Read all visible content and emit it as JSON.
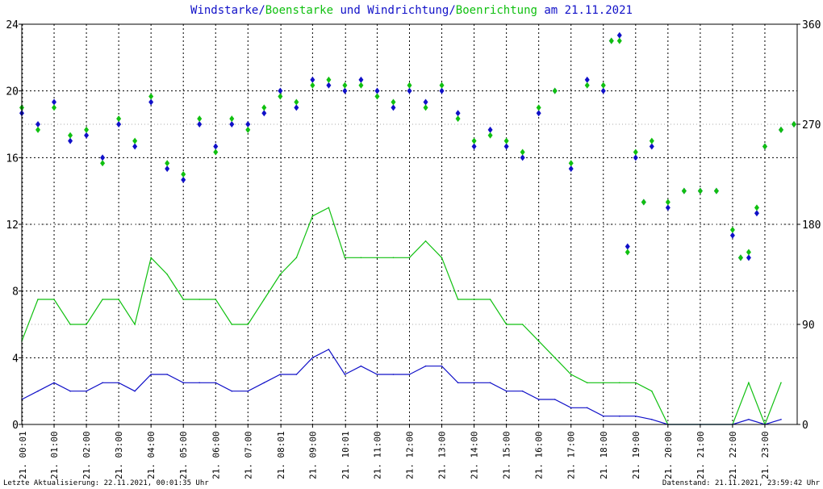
{
  "title": {
    "part1": "Windstarke",
    "sep1": "/",
    "part2": "Boenstarke",
    "mid": " und ",
    "part3": "Windrichtung",
    "sep2": "/",
    "part4": "Boenrichtung",
    "tail": " am 21.11.2021"
  },
  "footer": {
    "left": "Letzte Aktualisierung: 22.11.2021, 00:01:35 Uhr",
    "right": "Datenstand: 21.11.2021, 23:59:42 Uhr"
  },
  "colors": {
    "wind": "#1010c8",
    "gust": "#10c010",
    "grid": "#000000",
    "background": "#ffffff"
  },
  "chart_data": {
    "type": "line",
    "y_left": {
      "ylim": [
        0,
        24
      ],
      "ticks": [
        "0",
        "4",
        "8",
        "12",
        "16",
        "20",
        "24"
      ]
    },
    "y_right": {
      "ylim": [
        0,
        360
      ],
      "ticks": [
        "0",
        "90",
        "180",
        "270",
        "360"
      ]
    },
    "x_ticks": [
      "21. 00:01",
      "21. 01:00",
      "21. 02:00",
      "21. 03:00",
      "21. 04:00",
      "21. 05:00",
      "21. 06:00",
      "21. 07:00",
      "21. 08:01",
      "21. 09:00",
      "21. 10:01",
      "21. 11:00",
      "21. 12:00",
      "21. 13:00",
      "21. 14:00",
      "21. 15:00",
      "21. 16:00",
      "21. 17:00",
      "21. 18:00",
      "21. 19:00",
      "21. 20:00",
      "21. 21:00",
      "21. 22:00",
      "21. 23:00"
    ],
    "x_tick_hours": [
      0.02,
      1,
      2,
      3,
      4,
      5,
      6,
      7,
      8.02,
      9,
      10.02,
      11,
      12,
      13,
      14,
      15,
      16,
      17,
      18,
      19,
      20,
      21,
      22,
      23
    ],
    "xlim_hours": [
      0,
      24
    ],
    "series": [
      {
        "name": "Windstarke",
        "axis": "left",
        "kind": "line",
        "color_key": "wind",
        "x_hours": [
          0,
          0.5,
          1,
          1.5,
          2,
          2.5,
          3,
          3.5,
          4,
          4.5,
          5,
          5.5,
          6,
          6.5,
          7,
          7.5,
          8,
          8.5,
          9,
          9.5,
          10,
          10.5,
          11,
          11.5,
          12,
          12.5,
          13,
          13.5,
          14,
          14.5,
          15,
          15.5,
          16,
          16.5,
          17,
          17.5,
          18,
          18.5,
          19,
          19.5,
          20,
          21,
          22,
          22.5,
          23,
          23.5
        ],
        "values": [
          1.5,
          2.0,
          2.5,
          2.0,
          2.0,
          2.5,
          2.5,
          2.0,
          3.0,
          3.0,
          2.5,
          2.5,
          2.5,
          2.0,
          2.0,
          2.5,
          3.0,
          3.0,
          4.0,
          4.5,
          3.0,
          3.5,
          3.0,
          3.0,
          3.0,
          3.5,
          3.5,
          2.5,
          2.5,
          2.5,
          2.0,
          2.0,
          1.5,
          1.5,
          1.0,
          1.0,
          0.5,
          0.5,
          0.5,
          0.3,
          0,
          0,
          0,
          0.3,
          0,
          0.3
        ]
      },
      {
        "name": "Boenstarke",
        "axis": "left",
        "kind": "line",
        "color_key": "gust",
        "x_hours": [
          0,
          0.5,
          1,
          1.5,
          2,
          2.5,
          3,
          3.5,
          4,
          4.5,
          5,
          5.5,
          6,
          6.5,
          7,
          7.5,
          8,
          8.5,
          9,
          9.5,
          10,
          10.5,
          11,
          11.5,
          12,
          12.5,
          13,
          13.5,
          14,
          14.5,
          15,
          15.5,
          16,
          16.5,
          17,
          17.5,
          18,
          18.5,
          19,
          19.5,
          20,
          21,
          22,
          22.5,
          23,
          23.5
        ],
        "values": [
          5.0,
          7.5,
          7.5,
          6.0,
          6.0,
          7.5,
          7.5,
          6.0,
          10.0,
          9.0,
          7.5,
          7.5,
          7.5,
          6.0,
          6.0,
          7.5,
          9.0,
          10.0,
          12.5,
          13.0,
          10.0,
          10.0,
          10.0,
          10.0,
          10.0,
          11.0,
          10.0,
          7.5,
          7.5,
          7.5,
          6.0,
          6.0,
          5.0,
          4.0,
          3.0,
          2.5,
          2.5,
          2.5,
          2.5,
          2.0,
          0,
          0,
          0,
          2.5,
          0,
          2.5
        ]
      },
      {
        "name": "Windrichtung",
        "axis": "right",
        "kind": "points",
        "color_key": "wind",
        "x_hours": [
          0,
          0.5,
          1,
          1.5,
          2,
          2.5,
          3,
          3.5,
          4,
          4.5,
          5,
          5.5,
          6,
          6.5,
          7,
          7.5,
          8,
          8.5,
          9,
          9.5,
          10,
          10.5,
          11,
          11.5,
          12,
          12.5,
          13,
          13.5,
          14,
          14.5,
          15,
          15.5,
          16,
          16.5,
          17,
          17.5,
          18,
          18.25,
          18.5,
          18.75,
          19,
          19.25,
          19.5,
          20,
          20.5,
          21,
          21.5,
          22,
          22.25,
          22.5,
          22.75,
          23,
          23.5,
          23.9
        ],
        "values": [
          280,
          270,
          290,
          255,
          260,
          240,
          270,
          250,
          290,
          230,
          220,
          270,
          250,
          270,
          270,
          280,
          300,
          285,
          310,
          305,
          300,
          310,
          300,
          285,
          300,
          290,
          300,
          280,
          250,
          265,
          250,
          240,
          280,
          300,
          230,
          310,
          300,
          345,
          350,
          160,
          240,
          200,
          250,
          195,
          210,
          210,
          210,
          170,
          150,
          150,
          190,
          250,
          265,
          270
        ]
      },
      {
        "name": "Boenrichtung",
        "axis": "right",
        "kind": "points",
        "color_key": "gust",
        "x_hours": [
          0,
          0.5,
          1,
          1.5,
          2,
          2.5,
          3,
          3.5,
          4,
          4.5,
          5,
          5.5,
          6,
          6.5,
          7,
          7.5,
          8,
          8.5,
          9,
          9.5,
          10,
          10.5,
          11,
          11.5,
          12,
          12.5,
          13,
          13.5,
          14,
          14.5,
          15,
          15.5,
          16,
          16.5,
          17,
          17.5,
          18,
          18.25,
          18.5,
          18.75,
          19,
          19.25,
          19.5,
          20,
          20.5,
          21,
          21.5,
          22,
          22.25,
          22.5,
          22.75,
          23,
          23.5,
          23.9
        ],
        "values": [
          285,
          265,
          285,
          260,
          265,
          235,
          275,
          255,
          295,
          235,
          225,
          275,
          245,
          275,
          265,
          285,
          295,
          290,
          305,
          310,
          305,
          305,
          295,
          290,
          305,
          285,
          305,
          275,
          255,
          260,
          255,
          245,
          285,
          300,
          235,
          305,
          305,
          345,
          345,
          155,
          245,
          200,
          255,
          200,
          210,
          210,
          210,
          175,
          150,
          155,
          195,
          250,
          265,
          270
        ]
      }
    ]
  }
}
